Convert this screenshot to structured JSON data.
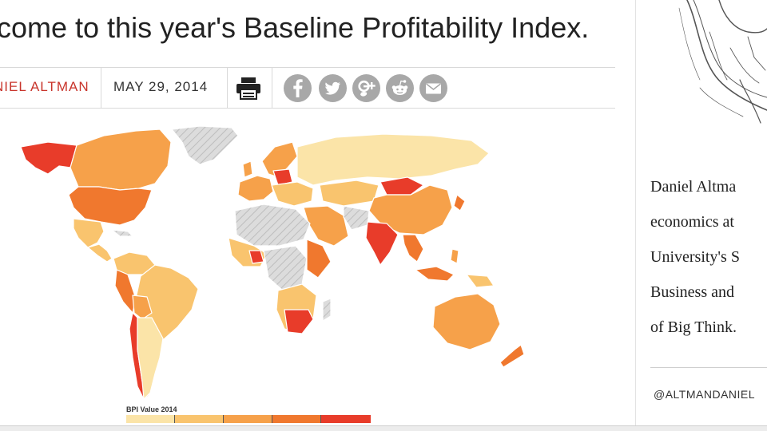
{
  "article": {
    "headline": "come to this year's Baseline Profitability Index.",
    "author": "NIEL ALTMAN",
    "date": "MAY 29, 2014"
  },
  "icons": {
    "print": "print-icon",
    "share": [
      "facebook-icon",
      "twitter-icon",
      "google-plus-icon",
      "reddit-icon",
      "email-icon"
    ]
  },
  "map": {
    "legend_title": "BPI Value 2014",
    "legend_colors": [
      "#fbe4a8",
      "#f9c46e",
      "#f6a14a",
      "#f0782e",
      "#e83c2a"
    ],
    "no_data_color": "#dcdcdc",
    "ocean_color": "#ffffff"
  },
  "sidebar": {
    "bio_lines": [
      "Daniel Altma",
      "economics at",
      "University's S",
      "Business and",
      "of Big Think."
    ],
    "twitter": "@ALTMANDANIEL"
  }
}
